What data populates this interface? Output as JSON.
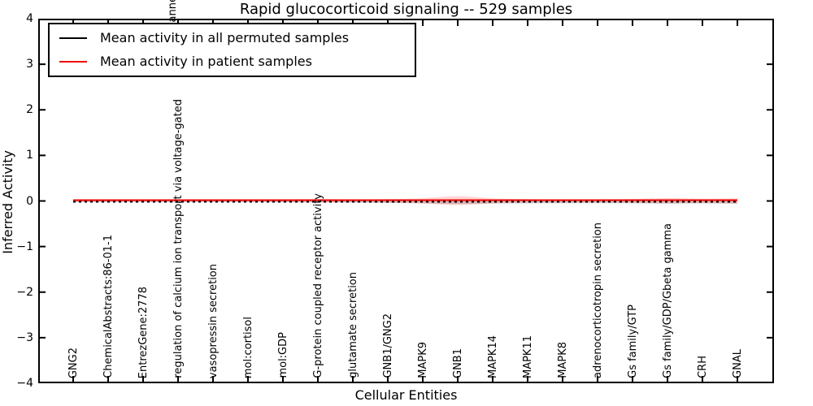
{
  "chart_data": {
    "type": "line",
    "title": "Rapid glucocorticoid signaling -- 529 samples",
    "xlabel": "Cellular Entities",
    "ylabel": "Inferred Activity",
    "ylim": [
      -4,
      4
    ],
    "ytick_values": [
      4,
      3,
      2,
      1,
      0,
      -1,
      -2,
      -3,
      -4
    ],
    "ytick_labels": [
      "4",
      "3",
      "2",
      "1",
      "0",
      "−1",
      "−2",
      "−3",
      "−4"
    ],
    "grid": false,
    "legend_position": "upper left",
    "categories": [
      "GNG2",
      "ChemicalAbstracts:86-01-1",
      "EntrezGene:2778",
      "regulation of calcium ion transport via voltage-gated",
      "vasopressin secretion",
      "mol:cortisol",
      "mol:GDP",
      "G-protein coupled receptor activity",
      "glutamate secretion",
      "GNB1/GNG2",
      "MAPK9",
      "GNB1",
      "MAPK14",
      "MAPK11",
      "MAPK8",
      "adrenocorticotropin secretion",
      "Gs family/GTP",
      "Gs family/GDP/Gbeta gamma",
      "CRH",
      "GNAL"
    ],
    "clipped_category_fragment": "hanne",
    "series": [
      {
        "name": "Mean activity in all permuted samples",
        "color": "#000000",
        "style": "dashed",
        "values": [
          0,
          0,
          0,
          0,
          0,
          0,
          0,
          0,
          0,
          0,
          0,
          0,
          0,
          0,
          0,
          0,
          0,
          0,
          0,
          0
        ]
      },
      {
        "name": "Mean activity in patient samples",
        "color": "#ee0000",
        "style": "solid",
        "values": [
          0,
          0,
          0,
          0,
          0,
          0,
          0,
          0,
          0,
          0,
          0,
          0,
          0,
          0,
          0,
          0,
          0,
          0,
          0,
          0
        ]
      }
    ],
    "bands": [
      {
        "series": "Mean activity in all permuted samples",
        "color": "#999999",
        "opacity": 0.45,
        "upper": [
          0.018,
          0.018,
          0.018,
          0.018,
          0.018,
          0.018,
          0.018,
          0.022,
          0.022,
          0.028,
          0.03,
          0.035,
          0.03,
          0.028,
          0.028,
          0.028,
          0.03,
          0.034,
          0.03,
          0.034
        ],
        "lower": [
          0.018,
          0.018,
          0.018,
          0.02,
          0.018,
          0.018,
          0.02,
          0.026,
          0.03,
          0.045,
          0.05,
          0.07,
          0.055,
          0.052,
          0.05,
          0.05,
          0.05,
          0.06,
          0.05,
          0.06
        ]
      },
      {
        "series": "Mean activity in patient samples",
        "color": "#ff3030",
        "opacity": 0.2,
        "upper": [
          0.028,
          0.028,
          0.028,
          0.03,
          0.028,
          0.028,
          0.03,
          0.045,
          0.032,
          0.04,
          0.055,
          0.125,
          0.05,
          0.038,
          0.035,
          0.035,
          0.042,
          0.07,
          0.045,
          0.06
        ],
        "lower": [
          0.028,
          0.028,
          0.028,
          0.03,
          0.028,
          0.028,
          0.03,
          0.04,
          0.032,
          0.04,
          0.05,
          0.105,
          0.048,
          0.038,
          0.035,
          0.035,
          0.042,
          0.058,
          0.042,
          0.055
        ]
      }
    ]
  }
}
